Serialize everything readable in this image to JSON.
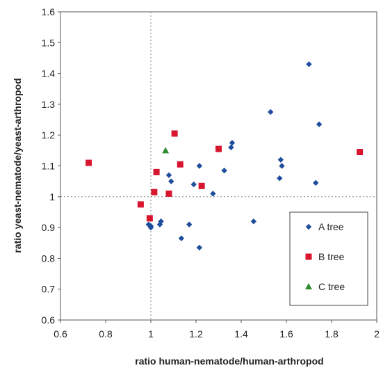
{
  "chart_data": {
    "type": "scatter",
    "title": "",
    "xlabel": "ratio human-nematode/human-arthropod",
    "ylabel": "ratio yeast-nematode/yeast-arthropod",
    "xlim": [
      0.6,
      2.0
    ],
    "ylim": [
      0.6,
      1.6
    ],
    "xticks": [
      "0.6",
      "0.8",
      "1",
      "1.2",
      "1.4",
      "1.6",
      "1.8",
      "2"
    ],
    "yticks": [
      "0.6",
      "0.7",
      "0.8",
      "0.9",
      "1",
      "1.1",
      "1.2",
      "1.3",
      "1.4",
      "1.5",
      "1.6"
    ],
    "grid": false,
    "reference_lines": {
      "x": 1.0,
      "y": 1.0
    },
    "legend_position": "bottom-right",
    "series": [
      {
        "name": "A tree",
        "marker": "diamond",
        "color": "#1f4e9c",
        "points": [
          [
            0.99,
            0.91
          ],
          [
            1.0,
            0.9
          ],
          [
            1.0,
            0.905
          ],
          [
            1.04,
            0.91
          ],
          [
            1.045,
            0.92
          ],
          [
            1.08,
            1.07
          ],
          [
            1.09,
            1.05
          ],
          [
            1.135,
            0.865
          ],
          [
            1.17,
            0.91
          ],
          [
            1.19,
            1.04
          ],
          [
            1.215,
            1.1
          ],
          [
            1.215,
            0.835
          ],
          [
            1.275,
            1.01
          ],
          [
            1.325,
            1.085
          ],
          [
            1.355,
            1.16
          ],
          [
            1.36,
            1.175
          ],
          [
            1.455,
            0.92
          ],
          [
            1.53,
            1.275
          ],
          [
            1.57,
            1.06
          ],
          [
            1.575,
            1.12
          ],
          [
            1.58,
            1.1
          ],
          [
            1.7,
            1.43
          ],
          [
            1.73,
            1.045
          ],
          [
            1.745,
            1.235
          ]
        ]
      },
      {
        "name": "B tree",
        "marker": "square",
        "color": "#d7152f",
        "points": [
          [
            0.725,
            1.11
          ],
          [
            0.955,
            0.975
          ],
          [
            0.995,
            0.93
          ],
          [
            1.015,
            1.015
          ],
          [
            1.025,
            1.08
          ],
          [
            1.08,
            1.01
          ],
          [
            1.105,
            1.205
          ],
          [
            1.13,
            1.105
          ],
          [
            1.225,
            1.035
          ],
          [
            1.3,
            1.155
          ],
          [
            1.925,
            1.145
          ]
        ]
      },
      {
        "name": "C tree",
        "marker": "triangle",
        "color": "#2e8b2e",
        "points": [
          [
            1.065,
            1.15
          ]
        ]
      }
    ]
  }
}
